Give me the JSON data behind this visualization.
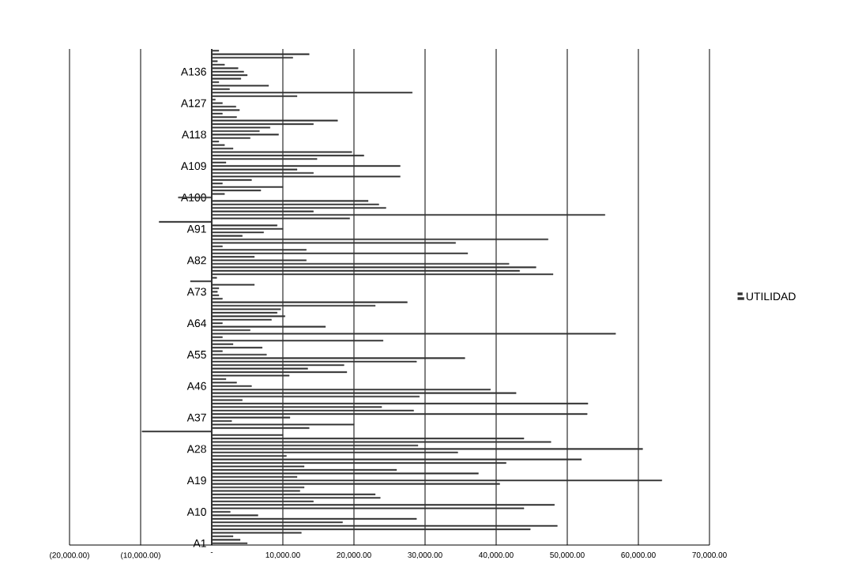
{
  "chart_data": {
    "type": "bar",
    "orientation": "horizontal",
    "categories": [
      null,
      null,
      null,
      null,
      null,
      null,
      "A136",
      null,
      null,
      null,
      null,
      null,
      null,
      null,
      null,
      "A127",
      null,
      null,
      null,
      null,
      null,
      null,
      null,
      null,
      "A118",
      null,
      null,
      null,
      null,
      null,
      null,
      null,
      null,
      "A109",
      null,
      null,
      null,
      null,
      null,
      null,
      null,
      null,
      "A100",
      null,
      null,
      null,
      null,
      null,
      null,
      null,
      null,
      "A91",
      null,
      null,
      null,
      null,
      null,
      null,
      null,
      null,
      "A82",
      null,
      null,
      null,
      null,
      null,
      null,
      null,
      null,
      "A73",
      null,
      null,
      null,
      null,
      null,
      null,
      null,
      null,
      "A64",
      null,
      null,
      null,
      null,
      null,
      null,
      null,
      null,
      "A55",
      null,
      null,
      null,
      null,
      null,
      null,
      null,
      null,
      "A46",
      null,
      null,
      null,
      null,
      null,
      null,
      null,
      null,
      "A37",
      null,
      null,
      null,
      null,
      null,
      null,
      null,
      null,
      "A28",
      null,
      null,
      null,
      null,
      null,
      null,
      null,
      null,
      "A19",
      null,
      null,
      null,
      null,
      null,
      null,
      null,
      null,
      "A10",
      null,
      null,
      null,
      null,
      null,
      null,
      null,
      null,
      "A1"
    ],
    "series": [
      {
        "name": "UTILIDAD",
        "color": "#333333",
        "values": [
          1000,
          13700,
          11400,
          800,
          1800,
          3700,
          4500,
          5000,
          4100,
          1000,
          8000,
          2500,
          28200,
          12000,
          500,
          1500,
          3400,
          3900,
          1500,
          3500,
          17700,
          14300,
          8200,
          6700,
          9400,
          5400,
          1000,
          1800,
          3000,
          19700,
          21400,
          14800,
          2000,
          26500,
          12000,
          14300,
          26500,
          5600,
          1500,
          10000,
          6900,
          1800,
          -4700,
          22000,
          23500,
          24500,
          14300,
          55300,
          19400,
          -7400,
          9200,
          10000,
          7300,
          4300,
          47300,
          34300,
          1500,
          13300,
          36000,
          6000,
          13300,
          41800,
          45600,
          43300,
          48000,
          700,
          -3000,
          6000,
          1000,
          800,
          1000,
          1500,
          27500,
          23000,
          9700,
          9200,
          10300,
          8400,
          1500,
          16000,
          5400,
          56800,
          1500,
          24100,
          3000,
          7100,
          1500,
          7700,
          35600,
          28800,
          18600,
          13500,
          19000,
          10900,
          2000,
          3500,
          5600,
          39200,
          42800,
          29200,
          4300,
          52900,
          23900,
          28400,
          52800,
          11000,
          2800,
          20000,
          13700,
          -9800,
          10000,
          43900,
          47700,
          29000,
          60600,
          34600,
          10500,
          52000,
          41400,
          13000,
          26000,
          37500,
          12000,
          63300,
          40500,
          13000,
          12400,
          23000,
          23700,
          14300,
          48200,
          43900,
          2600,
          6500,
          28800,
          18400,
          48600,
          44800,
          12600,
          3000,
          4000,
          5000
        ]
      }
    ],
    "xlim": [
      -20000,
      70000
    ],
    "xticks": [
      {
        "value": -20000,
        "label": "(20,000.00)"
      },
      {
        "value": -10000,
        "label": "(10,000.00)"
      },
      {
        "value": 0,
        "label": "-"
      },
      {
        "value": 10000,
        "label": "10,000.00"
      },
      {
        "value": 20000,
        "label": "20,000.00"
      },
      {
        "value": 30000,
        "label": "30,000.00"
      },
      {
        "value": 40000,
        "label": "40,000.00"
      },
      {
        "value": 50000,
        "label": "50,000.00"
      },
      {
        "value": 60000,
        "label": "60,000.00"
      },
      {
        "value": 70000,
        "label": "70,000.00"
      }
    ],
    "grid": "x",
    "legend": "right"
  }
}
